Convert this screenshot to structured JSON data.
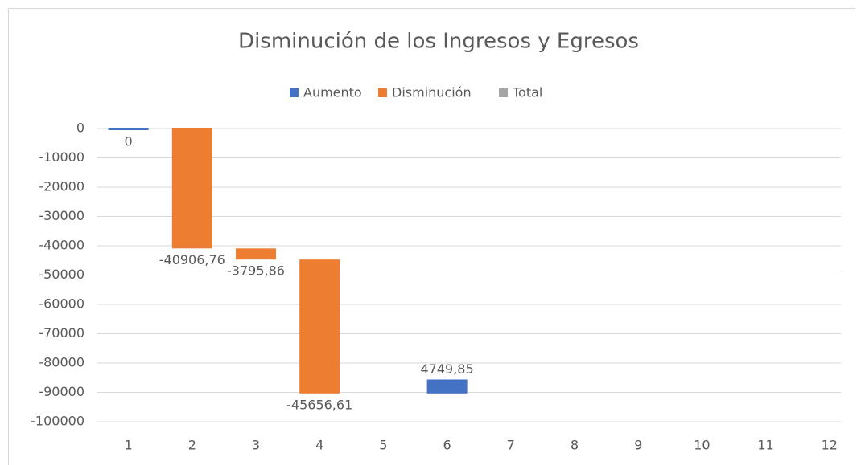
{
  "chart_data": {
    "type": "waterfall",
    "title": "Disminución de los Ingresos y Egresos",
    "legend": [
      {
        "name": "Aumento",
        "color": "#4472c4"
      },
      {
        "name": "Disminución",
        "color": "#ed7d31"
      },
      {
        "name": "Total",
        "color": "#a5a5a5"
      }
    ],
    "categories": [
      "1",
      "2",
      "3",
      "4",
      "5",
      "6",
      "7",
      "8",
      "9",
      "10",
      "11",
      "12"
    ],
    "values": [
      0,
      -40906.76,
      -3795.86,
      -45656.61,
      null,
      4749.85,
      null,
      null,
      null,
      null,
      null,
      null
    ],
    "value_labels": [
      "0",
      "-40906,76",
      "-3795,86",
      "-45656,61",
      null,
      "4749,85",
      null,
      null,
      null,
      null,
      null,
      null
    ],
    "ylim": [
      -100000,
      0
    ],
    "yticks": [
      0,
      -10000,
      -20000,
      -30000,
      -40000,
      -50000,
      -60000,
      -70000,
      -80000,
      -90000,
      -100000
    ],
    "grid": true
  }
}
